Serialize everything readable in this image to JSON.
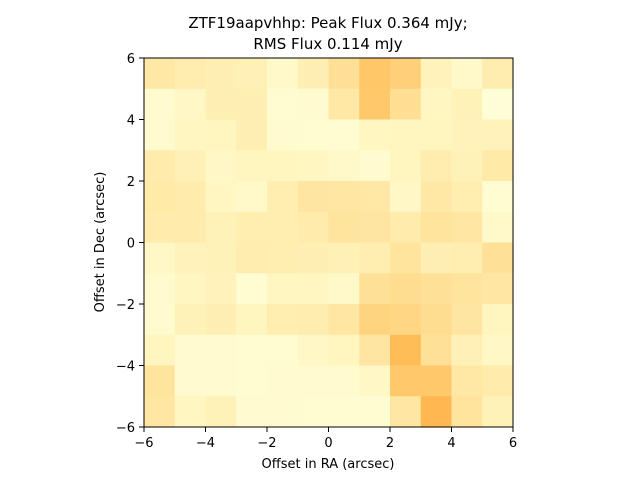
{
  "chart_data": {
    "type": "heatmap",
    "title_lines": [
      "ZTF19aapvhhp: Peak Flux 0.364 mJy;",
      "RMS Flux 0.114 mJy"
    ],
    "xlabel": "Offset in RA (arcsec)",
    "ylabel": "Offset in Dec (arcsec)",
    "xlim": [
      -6,
      6
    ],
    "ylim": [
      -6,
      6
    ],
    "xticks": [
      -6,
      -4,
      -2,
      0,
      2,
      4,
      6
    ],
    "yticks": [
      -6,
      -4,
      -2,
      0,
      2,
      4,
      6
    ],
    "colormap": "YlOrBr-like (light yellow = low flux, orange = high flux)",
    "color_scale": [
      "#ffffd9",
      "#fff2b8",
      "#ffe49e",
      "#ffd27c",
      "#ffc05a",
      "#ffa23c"
    ],
    "rows_top_to_bottom": [
      [
        0.35,
        0.28,
        0.24,
        0.22,
        0.1,
        0.24,
        0.45,
        0.72,
        0.62,
        0.18,
        0.1,
        0.28
      ],
      [
        0.06,
        0.12,
        0.24,
        0.24,
        0.04,
        0.06,
        0.34,
        0.7,
        0.46,
        0.14,
        0.2,
        0.02
      ],
      [
        0.06,
        0.14,
        0.16,
        0.24,
        0.06,
        0.04,
        0.04,
        0.14,
        0.16,
        0.16,
        0.18,
        0.18
      ],
      [
        0.3,
        0.22,
        0.12,
        0.16,
        0.16,
        0.14,
        0.1,
        0.06,
        0.16,
        0.28,
        0.2,
        0.32
      ],
      [
        0.32,
        0.3,
        0.14,
        0.1,
        0.26,
        0.38,
        0.36,
        0.34,
        0.12,
        0.34,
        0.26,
        0.04
      ],
      [
        0.3,
        0.3,
        0.2,
        0.26,
        0.26,
        0.3,
        0.4,
        0.38,
        0.3,
        0.4,
        0.36,
        0.1
      ],
      [
        0.12,
        0.18,
        0.2,
        0.28,
        0.26,
        0.24,
        0.22,
        0.26,
        0.4,
        0.24,
        0.26,
        0.44
      ],
      [
        0.06,
        0.14,
        0.18,
        0.04,
        0.14,
        0.14,
        0.1,
        0.44,
        0.48,
        0.44,
        0.4,
        0.36
      ],
      [
        0.06,
        0.2,
        0.24,
        0.16,
        0.26,
        0.28,
        0.36,
        0.58,
        0.56,
        0.48,
        0.38,
        0.16
      ],
      [
        0.16,
        0.06,
        0.06,
        0.04,
        0.04,
        0.12,
        0.16,
        0.38,
        0.82,
        0.44,
        0.22,
        0.12
      ],
      [
        0.4,
        0.06,
        0.06,
        0.04,
        0.06,
        0.06,
        0.06,
        0.12,
        0.7,
        0.7,
        0.34,
        0.3
      ],
      [
        0.36,
        0.14,
        0.2,
        0.06,
        0.06,
        0.04,
        0.04,
        0.04,
        0.36,
        0.86,
        0.4,
        0.2
      ]
    ]
  }
}
